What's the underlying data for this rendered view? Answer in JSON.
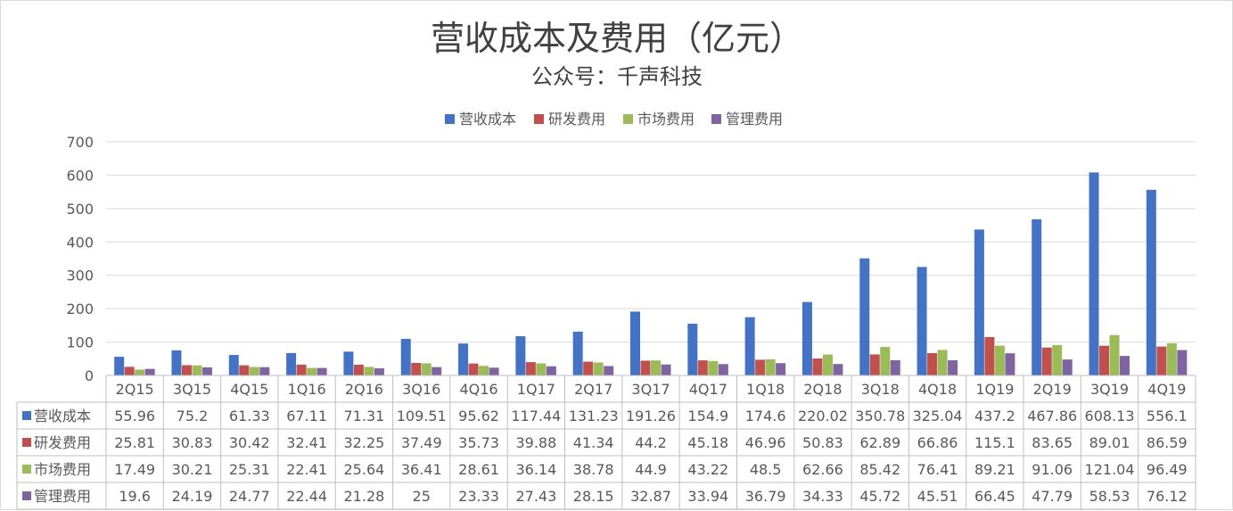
{
  "chart_data": {
    "type": "bar",
    "title": "营收成本及费用（亿元）",
    "subtitle": "公众号：千声科技",
    "ylim": [
      0,
      700
    ],
    "yticks": [
      0,
      100,
      200,
      300,
      400,
      500,
      600,
      700
    ],
    "grid": true,
    "legend_position": "top",
    "data_table": true,
    "categories": [
      "2Q15",
      "3Q15",
      "4Q15",
      "1Q16",
      "2Q16",
      "3Q16",
      "4Q16",
      "1Q17",
      "2Q17",
      "3Q17",
      "4Q17",
      "1Q18",
      "2Q18",
      "3Q18",
      "4Q18",
      "1Q19",
      "2Q19",
      "3Q19",
      "4Q19"
    ],
    "series": [
      {
        "name": "营收成本",
        "color": "#4472C4",
        "values": [
          55.96,
          75.2,
          61.33,
          67.11,
          71.31,
          109.51,
          95.62,
          117.44,
          131.23,
          191.26,
          154.9,
          174.6,
          220.02,
          350.78,
          325.04,
          437.2,
          467.86,
          608.13,
          556.1
        ]
      },
      {
        "name": "研发费用",
        "color": "#C0504D",
        "values": [
          25.81,
          30.83,
          30.42,
          32.41,
          32.25,
          37.49,
          35.73,
          39.88,
          41.34,
          44.2,
          45.18,
          46.96,
          50.83,
          62.89,
          66.86,
          115.1,
          83.65,
          89.01,
          86.59
        ]
      },
      {
        "name": "市场费用",
        "color": "#9BBB59",
        "values": [
          17.49,
          30.21,
          25.31,
          22.41,
          25.64,
          36.41,
          28.61,
          36.14,
          38.78,
          44.9,
          43.22,
          48.5,
          62.66,
          85.42,
          76.41,
          89.21,
          91.06,
          121.04,
          96.49
        ]
      },
      {
        "name": "管理费用",
        "color": "#8064A2",
        "values": [
          19.6,
          24.19,
          24.77,
          22.44,
          21.28,
          25,
          23.33,
          27.43,
          28.15,
          32.87,
          33.94,
          36.79,
          34.33,
          45.72,
          45.51,
          66.45,
          47.79,
          58.53,
          76.12
        ]
      }
    ]
  }
}
